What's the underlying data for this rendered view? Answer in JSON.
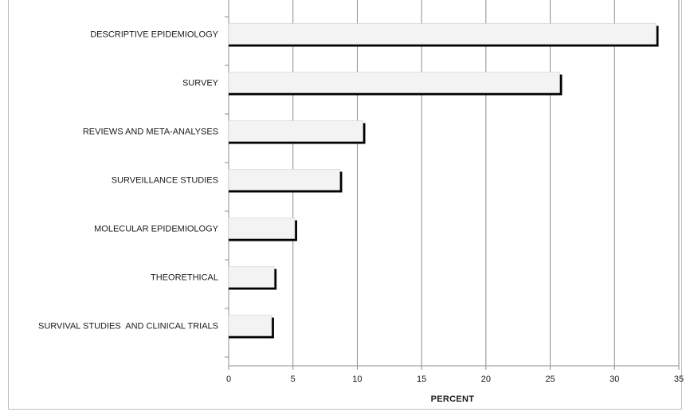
{
  "chart_data": {
    "type": "bar",
    "orientation": "horizontal",
    "categories": [
      "DESCRIPTIVE EPIDEMIOLOGY",
      "SURVEY",
      "REVIEWS AND META-ANALYSES",
      "SURVEILLANCE STUDIES",
      "MOLECULAR EPIDEMIOLOGY",
      "THEORETHICAL",
      "SURVIVAL STUDIES  AND CLINICAL TRIALS"
    ],
    "values": [
      33.3,
      25.8,
      10.5,
      8.7,
      5.2,
      3.6,
      3.4
    ],
    "title": "",
    "xlabel": "PERCENT",
    "ylabel": "",
    "xlim": [
      0,
      35
    ],
    "xticks": [
      "0",
      "5",
      "10",
      "15",
      "20",
      "25",
      "30",
      "35"
    ],
    "grid": "vertical",
    "legend": "none",
    "colors": {
      "bar_fill": "#f3f3f3",
      "bar_shadow": "#000000",
      "grid": "#8c8c8c",
      "axis": "#8c8c8c"
    }
  }
}
